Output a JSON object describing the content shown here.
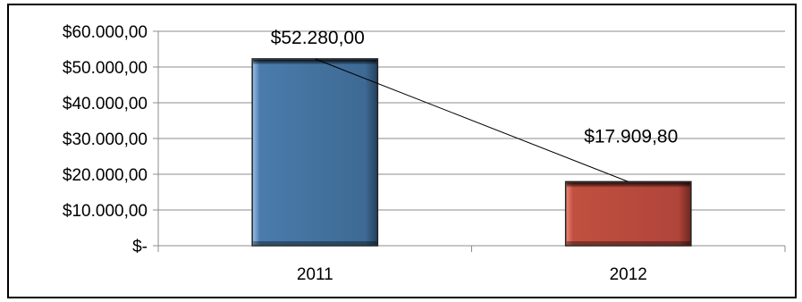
{
  "chart_data": {
    "type": "bar",
    "categories": [
      "2011",
      "2012"
    ],
    "values": [
      52280,
      17909.8
    ],
    "data_labels": [
      "$52.280,00",
      "$17.909,80"
    ],
    "bar_colors": [
      "#3E6A94",
      "#B0453B"
    ],
    "ylim": [
      0,
      60000
    ],
    "yticks": [
      0,
      10000,
      20000,
      30000,
      40000,
      50000,
      60000
    ],
    "ytick_labels": [
      "$-",
      "$10.000,00",
      "$20.000,00",
      "$30.000,00",
      "$40.000,00",
      "$50.000,00",
      "$60.000,00"
    ],
    "grid": true,
    "connector_line": true,
    "title": "",
    "xlabel": "",
    "ylabel": ""
  }
}
